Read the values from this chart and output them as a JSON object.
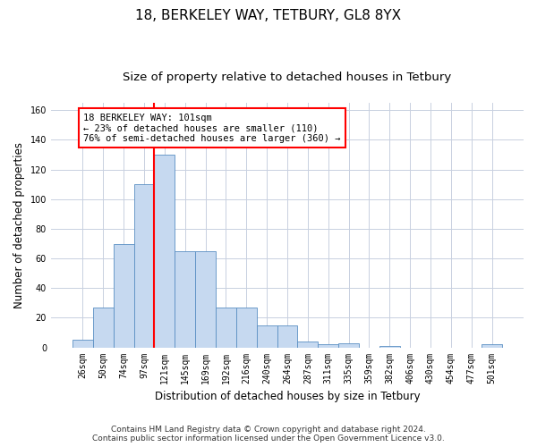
{
  "title_line1": "18, BERKELEY WAY, TETBURY, GL8 8YX",
  "title_line2": "Size of property relative to detached houses in Tetbury",
  "xlabel": "Distribution of detached houses by size in Tetbury",
  "ylabel": "Number of detached properties",
  "footnote": "Contains HM Land Registry data © Crown copyright and database right 2024.\nContains public sector information licensed under the Open Government Licence v3.0.",
  "bin_labels": [
    "26sqm",
    "50sqm",
    "74sqm",
    "97sqm",
    "121sqm",
    "145sqm",
    "169sqm",
    "192sqm",
    "216sqm",
    "240sqm",
    "264sqm",
    "287sqm",
    "311sqm",
    "335sqm",
    "359sqm",
    "382sqm",
    "406sqm",
    "430sqm",
    "454sqm",
    "477sqm",
    "501sqm"
  ],
  "bar_values": [
    5,
    27,
    70,
    110,
    130,
    65,
    65,
    27,
    27,
    15,
    15,
    4,
    2,
    3,
    0,
    1,
    0,
    0,
    0,
    0,
    2
  ],
  "bar_color": "#c6d9f0",
  "bar_edge_color": "#5a8fc3",
  "grid_color": "#c8d0e0",
  "property_line_x": 3.5,
  "annotation_text_line1": "18 BERKELEY WAY: 101sqm",
  "annotation_text_line2": "← 23% of detached houses are smaller (110)",
  "annotation_text_line3": "76% of semi-detached houses are larger (360) →",
  "annotation_box_color": "white",
  "annotation_box_edge_color": "red",
  "vline_color": "red",
  "ylim": [
    0,
    165
  ],
  "yticks": [
    0,
    20,
    40,
    60,
    80,
    100,
    120,
    140,
    160
  ],
  "title_fontsize": 11,
  "subtitle_fontsize": 9.5,
  "axis_label_fontsize": 8.5,
  "tick_fontsize": 7,
  "annotation_fontsize": 7.5,
  "footnote_fontsize": 6.5
}
